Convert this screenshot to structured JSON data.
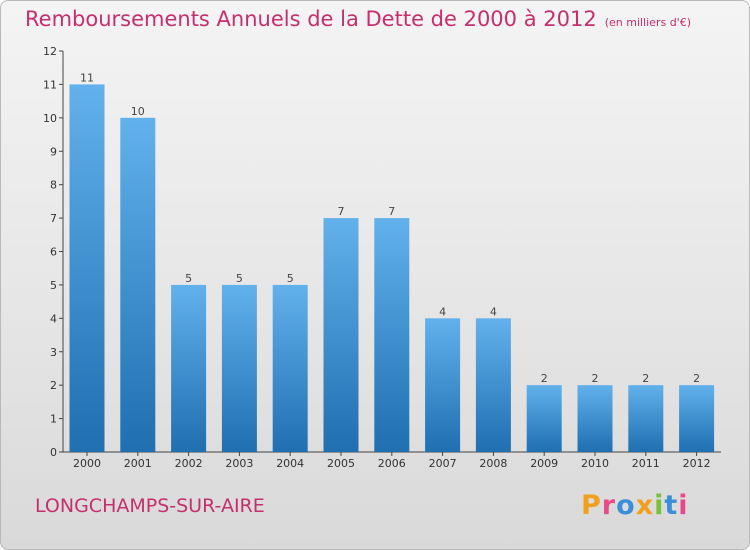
{
  "header": {
    "title": "Remboursements Annuels de la Dette de 2000 à 2012",
    "unit": "(en milliers d'€)"
  },
  "footer": {
    "commune": "LONGCHAMPS-SUR-AIRE",
    "logo_text": "Proxiti"
  },
  "colors": {
    "accent": "#c72e6d",
    "bar_top": "#62b1ec",
    "bar_bottom": "#1f6fb1",
    "logo_letters": [
      "#f0a01e",
      "#e9488a",
      "#3a8fd8",
      "#f0a01e",
      "#7bbf3a",
      "#3a8fd8",
      "#e9488a"
    ]
  },
  "chart_data": {
    "type": "bar",
    "title": "Remboursements Annuels de la Dette de 2000 à 2012",
    "subtitle": "(en milliers d'€)",
    "categories": [
      "2000",
      "2001",
      "2002",
      "2003",
      "2004",
      "2005",
      "2006",
      "2007",
      "2008",
      "2009",
      "2010",
      "2011",
      "2012"
    ],
    "values": [
      11,
      10,
      5,
      5,
      5,
      7,
      7,
      4,
      4,
      2,
      2,
      2,
      2
    ],
    "ylim": [
      0,
      12
    ],
    "yticks": [
      "0",
      "1",
      "2",
      "3",
      "4",
      "5",
      "6",
      "7",
      "8",
      "9",
      "10",
      "11",
      "12"
    ],
    "grid": false,
    "xlabel": "",
    "ylabel": ""
  }
}
